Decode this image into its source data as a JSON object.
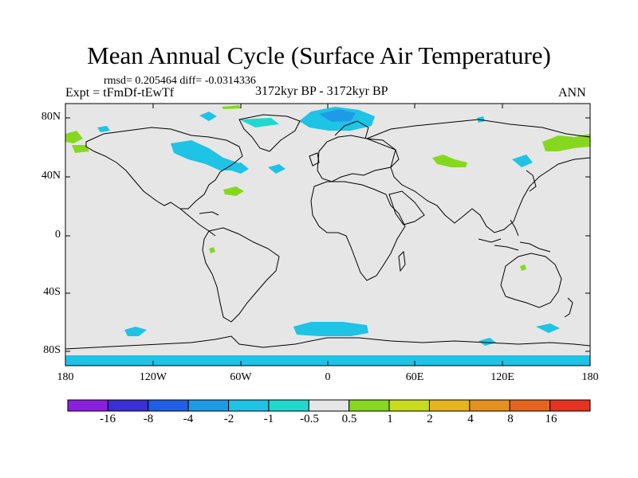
{
  "title": "Mean Annual Cycle (Surface Air Temperature)",
  "stats": "rmsd= 0.205464 diff= -0.0314336",
  "experiment": "Expt = tFmDf-tEwTf",
  "period": "3172kyr BP - 3172kyr BP",
  "season": "ANN",
  "map": {
    "lat_labels": [
      "80N",
      "40N",
      "0",
      "40S",
      "80S"
    ],
    "lon_labels": [
      "180",
      "120W",
      "60W",
      "0",
      "60E",
      "120E",
      "180"
    ],
    "background_color": "#e6e6e6",
    "coastline_color": "#000000"
  },
  "colorbar": {
    "labels": [
      "-16",
      "-8",
      "-4",
      "-2",
      "-1",
      "-0.5",
      "0.5",
      "1",
      "2",
      "4",
      "8",
      "16"
    ],
    "colors": [
      "#8a1fe0",
      "#3b2fd6",
      "#1f5ee6",
      "#1e9be6",
      "#1ec3e6",
      "#1fd9cf",
      "#e6e6e6",
      "#86d81e",
      "#c8dc1e",
      "#e6b41e",
      "#e6901e",
      "#e6641e",
      "#e6321e"
    ]
  }
}
